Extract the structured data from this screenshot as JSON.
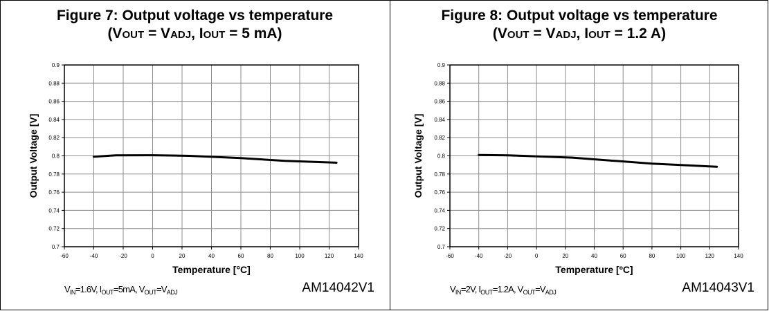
{
  "chart_data": [
    {
      "type": "line",
      "title": "Figure 7: Output voltage vs temperature",
      "subtitle": {
        "open": "(V",
        "v_sub": "OUT",
        "eq": " = V",
        "adj_sub": "ADJ",
        "mid": ", I",
        "i_sub": "OUT",
        "tail": " = 5 mA)"
      },
      "xlabel": "Temperature [°C]",
      "ylabel": "Output Voltage [V]",
      "xlim": [
        -60,
        140
      ],
      "ylim": [
        0.7,
        0.9
      ],
      "xticks": [
        -60,
        -40,
        -20,
        0,
        20,
        40,
        60,
        80,
        100,
        120,
        140
      ],
      "yticks": [
        0.7,
        0.72,
        0.74,
        0.76,
        0.78,
        0.8,
        0.82,
        0.84,
        0.86,
        0.88,
        0.9
      ],
      "grid": true,
      "x": [
        -40,
        -25,
        0,
        25,
        60,
        90,
        125
      ],
      "y": [
        0.799,
        0.8005,
        0.8007,
        0.8,
        0.7975,
        0.7945,
        0.7925
      ],
      "note": {
        "p1": "V",
        "s1": "IN",
        "p2": "=1.6V, I",
        "s2": "OUT",
        "p3": "=5mA, V",
        "s3": "OUT",
        "p4": "=V",
        "s4": "ADJ"
      },
      "code": "AM14042V1"
    },
    {
      "type": "line",
      "title": "Figure 8: Output voltage vs temperature",
      "subtitle": {
        "open": "(V",
        "v_sub": "OUT",
        "eq": " = V",
        "adj_sub": "ADJ",
        "mid": ", I",
        "i_sub": "OUT",
        "tail": " = 1.2 A)"
      },
      "xlabel": "Temperature [ºC]",
      "ylabel": "Output Voltage [V]",
      "xlim": [
        -60,
        140
      ],
      "ylim": [
        0.7,
        0.9
      ],
      "xticks": [
        -60,
        -40,
        -20,
        0,
        20,
        40,
        60,
        80,
        100,
        120,
        140
      ],
      "yticks": [
        0.7,
        0.72,
        0.74,
        0.76,
        0.78,
        0.8,
        0.82,
        0.84,
        0.86,
        0.88,
        0.9
      ],
      "grid": true,
      "x": [
        -40,
        -20,
        0,
        25,
        50,
        80,
        105,
        125
      ],
      "y": [
        0.801,
        0.8005,
        0.7995,
        0.798,
        0.795,
        0.7915,
        0.7895,
        0.788
      ],
      "note": {
        "p1": "V",
        "s1": "IN",
        "p2": "=2V, I",
        "s2": "OUT",
        "p3": "=1.2A, V",
        "s3": "OUT",
        "p4": "=V",
        "s4": "ADJ"
      },
      "code": "AM14043V1"
    }
  ]
}
